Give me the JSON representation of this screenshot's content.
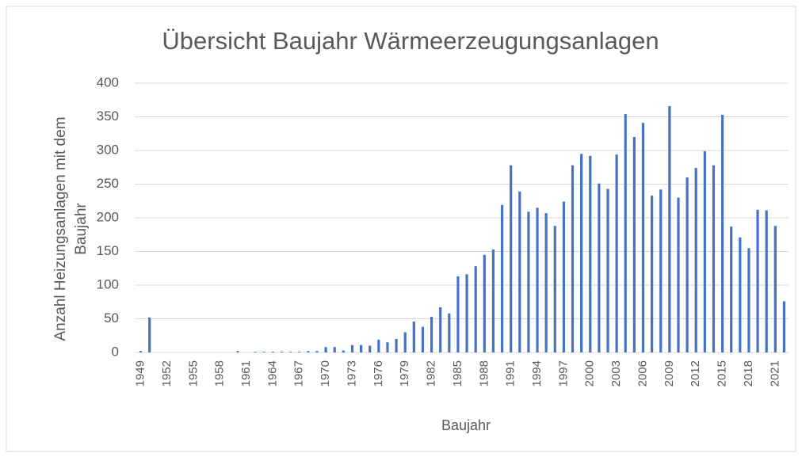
{
  "chart_data": {
    "type": "bar",
    "title": "Übersicht Baujahr Wärmeerzeugungsanlagen",
    "x_label": "Baujahr",
    "y_label": "Anzahl Heizungsanlagen mit dem Baujahr",
    "categories": [
      "1949",
      null,
      null,
      "1952",
      null,
      null,
      "1955",
      null,
      null,
      "1958",
      null,
      null,
      "1961",
      null,
      null,
      "1964",
      null,
      null,
      "1967",
      null,
      null,
      "1970",
      null,
      null,
      "1973",
      null,
      null,
      "1976",
      null,
      null,
      "1979",
      null,
      null,
      "1982",
      null,
      null,
      "1985",
      null,
      null,
      "1988",
      null,
      null,
      "1991",
      null,
      null,
      "1994",
      null,
      null,
      "1997",
      null,
      null,
      "2000",
      null,
      null,
      "2003",
      null,
      null,
      "2006",
      null,
      null,
      "2009",
      null,
      null,
      "2012",
      null,
      null,
      "2015",
      null,
      null,
      "2018",
      null,
      null,
      "2021",
      null
    ],
    "values": [
      2,
      52,
      0,
      0,
      0,
      0,
      0,
      0,
      0,
      0,
      0,
      2,
      0,
      1,
      1,
      1,
      1,
      1,
      1,
      2,
      2,
      8,
      8,
      3,
      11,
      11,
      10,
      19,
      15,
      20,
      30,
      46,
      38,
      53,
      67,
      58,
      113,
      116,
      128,
      145,
      153,
      219,
      278,
      239,
      209,
      215,
      207,
      188,
      224,
      278,
      295,
      292,
      251,
      243,
      294,
      354,
      320,
      341,
      233,
      242,
      366,
      230,
      260,
      274,
      299,
      278,
      353,
      187,
      171,
      155,
      212,
      211,
      188,
      76
    ],
    "color": "#4472c4",
    "ylim": [
      0,
      400
    ],
    "yticks": [
      0,
      50,
      100,
      150,
      200,
      250,
      300,
      350,
      400
    ],
    "grid": true
  }
}
